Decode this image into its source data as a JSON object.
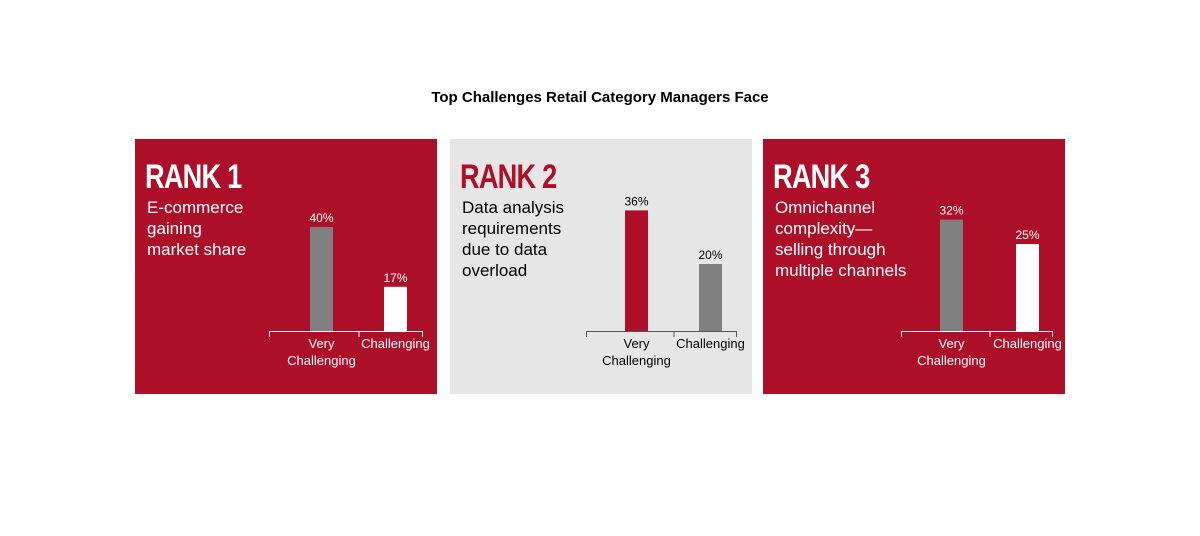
{
  "title": "Top Challenges Retail Category Managers Face",
  "colors": {
    "red": "#ad0e28",
    "gray": "#808080",
    "light": "#e6e6e6",
    "white": "#ffffff"
  },
  "chart_data": [
    {
      "type": "bar",
      "rank_label": "RANK 1",
      "title": "E-commerce gaining market share",
      "title_lines": [
        "E-commerce",
        "gaining",
        "market share"
      ],
      "categories": [
        "Very Challenging",
        "Challenging"
      ],
      "category_lines": [
        [
          "Very",
          "Challenging"
        ],
        [
          "Challenging"
        ]
      ],
      "values": [
        40,
        17
      ],
      "value_labels": [
        "40%",
        "17%"
      ],
      "background": "red",
      "bar_colors": [
        "gray",
        "white"
      ]
    },
    {
      "type": "bar",
      "rank_label": "RANK 2",
      "title": "Data analysis requirements due to data overload",
      "title_lines": [
        "Data analysis",
        "requirements",
        "due to data",
        "overload"
      ],
      "categories": [
        "Very Challenging",
        "Challenging"
      ],
      "category_lines": [
        [
          "Very",
          "Challenging"
        ],
        [
          "Challenging"
        ]
      ],
      "values": [
        36,
        20
      ],
      "value_labels": [
        "36%",
        "20%"
      ],
      "background": "light",
      "bar_colors": [
        "red",
        "gray"
      ]
    },
    {
      "type": "bar",
      "rank_label": "RANK 3",
      "title": "Omnichannel complexity—selling through multiple channels",
      "title_lines": [
        "Omnichannel",
        "complexity—",
        "selling through",
        "multiple channels"
      ],
      "categories": [
        "Very Challenging",
        "Challenging"
      ],
      "category_lines": [
        [
          "Very",
          "Challenging"
        ],
        [
          "Challenging"
        ]
      ],
      "values": [
        32,
        25
      ],
      "value_labels": [
        "32%",
        "25%"
      ],
      "background": "red",
      "bar_colors": [
        "gray",
        "white"
      ]
    }
  ]
}
